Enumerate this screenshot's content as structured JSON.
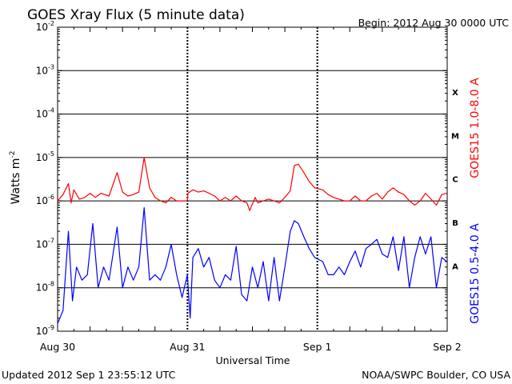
{
  "header": {
    "title": "GOES Xray Flux (5 minute data)",
    "begin": "Begin:  2012 Aug 30 0000 UTC"
  },
  "footer": {
    "updated": "Updated 2012 Sep  1 23:55:12 UTC",
    "source": "NOAA/SWPC Boulder, CO USA"
  },
  "chart_data": {
    "type": "line",
    "title": "GOES Xray Flux (5 minute data)",
    "xlabel": "Universal Time",
    "ylabel_base": "Watts m",
    "ylabel_sup": "-2",
    "y_scale": "log",
    "ylim": [
      1e-09,
      0.01
    ],
    "xlim": [
      "2012-08-30T00:00",
      "2012-09-02T00:00"
    ],
    "grid": true,
    "x_ticks": [
      {
        "t": "2012-08-30T00:00",
        "label": "Aug 30"
      },
      {
        "t": "2012-08-31T00:00",
        "label": "Aug 31"
      },
      {
        "t": "2012-09-01T00:00",
        "label": "Sep 1"
      },
      {
        "t": "2012-09-02T00:00",
        "label": "Sep 2"
      }
    ],
    "y_ticks": [
      {
        "v": 1e-09,
        "base": "10",
        "exp": "-9"
      },
      {
        "v": 1e-08,
        "base": "10",
        "exp": "-8"
      },
      {
        "v": 1e-07,
        "base": "10",
        "exp": "-7"
      },
      {
        "v": 1e-06,
        "base": "10",
        "exp": "-6"
      },
      {
        "v": 1e-05,
        "base": "10",
        "exp": "-5"
      },
      {
        "v": 0.0001,
        "base": "10",
        "exp": "-4"
      },
      {
        "v": 0.001,
        "base": "10",
        "exp": "-3"
      },
      {
        "v": 0.01,
        "base": "10",
        "exp": "-2"
      }
    ],
    "flare_classes": [
      {
        "label": "X",
        "v": 0.00032
      },
      {
        "label": "M",
        "v": 3.2e-05
      },
      {
        "label": "C",
        "v": 3.2e-06
      },
      {
        "label": "B",
        "v": 3.2e-07
      },
      {
        "label": "A",
        "v": 3.2e-08
      }
    ],
    "series": [
      {
        "name": "GOES15 1.0-8.0 A",
        "color": "#ff0000",
        "points": [
          [
            "2012-08-30T00:00",
            1e-06
          ],
          [
            "2012-08-30T01:00",
            1.4e-06
          ],
          [
            "2012-08-30T02:00",
            2.5e-06
          ],
          [
            "2012-08-30T02:30",
            9e-07
          ],
          [
            "2012-08-30T03:00",
            1.8e-06
          ],
          [
            "2012-08-30T04:00",
            1.1e-06
          ],
          [
            "2012-08-30T05:00",
            1.2e-06
          ],
          [
            "2012-08-30T06:00",
            1.5e-06
          ],
          [
            "2012-08-30T07:00",
            1.2e-06
          ],
          [
            "2012-08-30T08:00",
            1.5e-06
          ],
          [
            "2012-08-30T09:30",
            1.3e-06
          ],
          [
            "2012-08-30T11:00",
            4.5e-06
          ],
          [
            "2012-08-30T12:00",
            1.6e-06
          ],
          [
            "2012-08-30T13:00",
            1.3e-06
          ],
          [
            "2012-08-30T14:00",
            1.4e-06
          ],
          [
            "2012-08-30T15:00",
            1.6e-06
          ],
          [
            "2012-08-30T16:00",
            1e-05
          ],
          [
            "2012-08-30T17:00",
            2e-06
          ],
          [
            "2012-08-30T18:00",
            1.2e-06
          ],
          [
            "2012-08-30T19:00",
            1e-06
          ],
          [
            "2012-08-30T20:00",
            9e-07
          ],
          [
            "2012-08-30T21:00",
            1.2e-06
          ],
          [
            "2012-08-30T22:00",
            1e-06
          ],
          [
            "2012-08-30T23:59",
            1e-06
          ],
          [
            "2012-08-31T00:05",
            1.5e-06
          ],
          [
            "2012-08-31T01:00",
            1.8e-06
          ],
          [
            "2012-08-31T02:00",
            1.6e-06
          ],
          [
            "2012-08-31T03:00",
            1.7e-06
          ],
          [
            "2012-08-31T04:00",
            1.5e-06
          ],
          [
            "2012-08-31T05:00",
            1.3e-06
          ],
          [
            "2012-08-31T06:00",
            1e-06
          ],
          [
            "2012-08-31T07:00",
            1.2e-06
          ],
          [
            "2012-08-31T08:00",
            1e-06
          ],
          [
            "2012-08-31T09:00",
            1.3e-06
          ],
          [
            "2012-08-31T10:00",
            1e-06
          ],
          [
            "2012-08-31T11:00",
            9e-07
          ],
          [
            "2012-08-31T11:30",
            6e-07
          ],
          [
            "2012-08-31T12:30",
            1.2e-06
          ],
          [
            "2012-08-31T13:00",
            9e-07
          ],
          [
            "2012-08-31T14:00",
            1e-06
          ],
          [
            "2012-08-31T15:00",
            1.1e-06
          ],
          [
            "2012-08-31T16:00",
            1e-06
          ],
          [
            "2012-08-31T17:00",
            9e-07
          ],
          [
            "2012-08-31T18:00",
            1.2e-06
          ],
          [
            "2012-08-31T19:00",
            1.7e-06
          ],
          [
            "2012-08-31T19:45",
            6.5e-06
          ],
          [
            "2012-08-31T20:30",
            7e-06
          ],
          [
            "2012-08-31T21:30",
            4.5e-06
          ],
          [
            "2012-08-31T22:30",
            2.8e-06
          ],
          [
            "2012-08-31T23:30",
            2e-06
          ],
          [
            "2012-09-01T01:00",
            1.8e-06
          ],
          [
            "2012-09-01T02:00",
            1.4e-06
          ],
          [
            "2012-09-01T03:00",
            1.2e-06
          ],
          [
            "2012-09-01T04:00",
            1.1e-06
          ],
          [
            "2012-09-01T05:00",
            1e-06
          ],
          [
            "2012-09-01T06:00",
            1e-06
          ],
          [
            "2012-09-01T07:00",
            1.3e-06
          ],
          [
            "2012-09-01T08:00",
            1e-06
          ],
          [
            "2012-09-01T09:00",
            1e-06
          ],
          [
            "2012-09-01T10:00",
            1.3e-06
          ],
          [
            "2012-09-01T11:00",
            1.5e-06
          ],
          [
            "2012-09-01T12:00",
            1.1e-06
          ],
          [
            "2012-09-01T13:00",
            1.6e-06
          ],
          [
            "2012-09-01T14:00",
            2e-06
          ],
          [
            "2012-09-01T15:00",
            1.6e-06
          ],
          [
            "2012-09-01T16:00",
            1.4e-06
          ],
          [
            "2012-09-01T17:00",
            1e-06
          ],
          [
            "2012-09-01T18:00",
            8e-07
          ],
          [
            "2012-09-01T19:00",
            1e-06
          ],
          [
            "2012-09-01T20:00",
            1.5e-06
          ],
          [
            "2012-09-01T21:00",
            1.1e-06
          ],
          [
            "2012-09-01T22:00",
            8e-07
          ],
          [
            "2012-09-01T23:00",
            1.4e-06
          ],
          [
            "2012-09-01T23:55",
            1.5e-06
          ]
        ]
      },
      {
        "name": "GOES15 0.5-4.0 A",
        "color": "#0000ff",
        "points": [
          [
            "2012-08-30T00:00",
            1.5e-09
          ],
          [
            "2012-08-30T01:00",
            3e-09
          ],
          [
            "2012-08-30T02:00",
            2e-07
          ],
          [
            "2012-08-30T02:45",
            5e-09
          ],
          [
            "2012-08-30T03:30",
            3e-08
          ],
          [
            "2012-08-30T04:30",
            1.5e-08
          ],
          [
            "2012-08-30T05:30",
            2e-08
          ],
          [
            "2012-08-30T06:30",
            3e-07
          ],
          [
            "2012-08-30T07:30",
            1e-08
          ],
          [
            "2012-08-30T08:30",
            3e-08
          ],
          [
            "2012-08-30T09:30",
            1.5e-08
          ],
          [
            "2012-08-30T11:00",
            2.5e-07
          ],
          [
            "2012-08-30T12:00",
            1e-08
          ],
          [
            "2012-08-30T13:00",
            3e-08
          ],
          [
            "2012-08-30T14:00",
            1.5e-08
          ],
          [
            "2012-08-30T15:00",
            3e-08
          ],
          [
            "2012-08-30T16:00",
            7e-07
          ],
          [
            "2012-08-30T17:00",
            1.5e-08
          ],
          [
            "2012-08-30T18:00",
            2e-08
          ],
          [
            "2012-08-30T19:00",
            1.5e-08
          ],
          [
            "2012-08-30T20:00",
            3e-08
          ],
          [
            "2012-08-30T21:00",
            1e-07
          ],
          [
            "2012-08-30T22:00",
            2e-08
          ],
          [
            "2012-08-30T23:00",
            6e-09
          ],
          [
            "2012-08-30T23:59",
            2e-08
          ],
          [
            "2012-08-31T00:30",
            2e-09
          ],
          [
            "2012-08-31T01:00",
            5e-08
          ],
          [
            "2012-08-31T02:00",
            8e-08
          ],
          [
            "2012-08-31T03:00",
            3e-08
          ],
          [
            "2012-08-31T04:00",
            5e-08
          ],
          [
            "2012-08-31T05:00",
            1.5e-08
          ],
          [
            "2012-08-31T06:00",
            1e-08
          ],
          [
            "2012-08-31T07:00",
            2e-08
          ],
          [
            "2012-08-31T08:00",
            1.5e-08
          ],
          [
            "2012-08-31T09:00",
            9e-08
          ],
          [
            "2012-08-31T10:00",
            7e-09
          ],
          [
            "2012-08-31T11:00",
            5e-09
          ],
          [
            "2012-08-31T12:00",
            3e-08
          ],
          [
            "2012-08-31T13:00",
            1e-08
          ],
          [
            "2012-08-31T14:00",
            4e-08
          ],
          [
            "2012-08-31T15:00",
            5e-09
          ],
          [
            "2012-08-31T16:00",
            5e-08
          ],
          [
            "2012-08-31T17:00",
            5e-09
          ],
          [
            "2012-08-31T18:00",
            3e-08
          ],
          [
            "2012-08-31T19:00",
            2e-07
          ],
          [
            "2012-08-31T19:45",
            3.5e-07
          ],
          [
            "2012-08-31T20:30",
            3e-07
          ],
          [
            "2012-08-31T21:30",
            1.5e-07
          ],
          [
            "2012-08-31T22:30",
            8e-08
          ],
          [
            "2012-08-31T23:30",
            5e-08
          ],
          [
            "2012-09-01T01:00",
            4e-08
          ],
          [
            "2012-09-01T02:00",
            2e-08
          ],
          [
            "2012-09-01T03:00",
            2e-08
          ],
          [
            "2012-09-01T04:00",
            3e-08
          ],
          [
            "2012-09-01T05:00",
            2e-08
          ],
          [
            "2012-09-01T06:00",
            4e-08
          ],
          [
            "2012-09-01T07:00",
            7e-08
          ],
          [
            "2012-09-01T08:00",
            3e-08
          ],
          [
            "2012-09-01T09:00",
            8e-08
          ],
          [
            "2012-09-01T10:00",
            1e-07
          ],
          [
            "2012-09-01T11:00",
            1.3e-07
          ],
          [
            "2012-09-01T12:00",
            6e-08
          ],
          [
            "2012-09-01T13:00",
            5e-08
          ],
          [
            "2012-09-01T14:00",
            1.5e-07
          ],
          [
            "2012-09-01T15:00",
            2.5e-08
          ],
          [
            "2012-09-01T16:00",
            1.5e-07
          ],
          [
            "2012-09-01T17:00",
            1e-08
          ],
          [
            "2012-09-01T18:00",
            5e-08
          ],
          [
            "2012-09-01T19:00",
            1.5e-07
          ],
          [
            "2012-09-01T20:00",
            6e-08
          ],
          [
            "2012-09-01T21:00",
            1.5e-07
          ],
          [
            "2012-09-01T22:00",
            1e-08
          ],
          [
            "2012-09-01T23:00",
            5e-08
          ],
          [
            "2012-09-01T23:55",
            4e-08
          ]
        ]
      }
    ]
  }
}
